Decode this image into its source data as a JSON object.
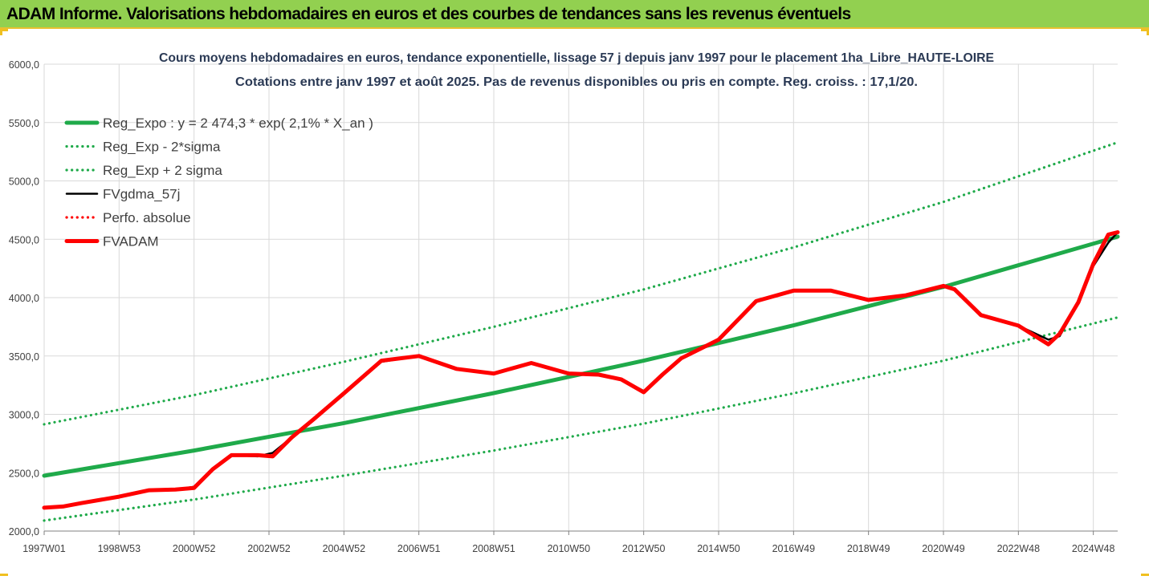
{
  "header": {
    "title": "ADAM Informe. Valorisations hebdomadaires en euros et des courbes de tendances sans les revenus éventuels"
  },
  "colors": {
    "header_bg": "#92d050",
    "trend_green": "#1faa4a",
    "fv_red": "#ff0000",
    "fv_black": "#000000",
    "grid": "#d9d9d9"
  },
  "chart_data": {
    "type": "line",
    "title": "Cours moyens hebdomadaires en euros, tendance exponentielle, lissage 57 j depuis janv 1997 pour le placement 1ha_Libre_HAUTE-LOIRE",
    "subtitle": "Cotations entre janv 1997 et août 2025. Pas de revenus disponibles ou pris en compte. Reg. croiss. : 17,1/20.",
    "xlabel": "",
    "ylabel": "",
    "ylim": [
      2000,
      6000
    ],
    "xlim": [
      1997.0,
      2025.65
    ],
    "yticks": [
      "2000,0",
      "2500,0",
      "3000,0",
      "3500,0",
      "4000,0",
      "4500,0",
      "5000,0",
      "5500,0",
      "6000,0"
    ],
    "xticks": [
      {
        "label": "1997W01",
        "x": 1997.0
      },
      {
        "label": "1998W53",
        "x": 1999.0
      },
      {
        "label": "2000W52",
        "x": 2001.0
      },
      {
        "label": "2002W52",
        "x": 2003.0
      },
      {
        "label": "2004W52",
        "x": 2005.0
      },
      {
        "label": "2006W51",
        "x": 2007.0
      },
      {
        "label": "2008W51",
        "x": 2009.0
      },
      {
        "label": "2010W50",
        "x": 2011.0
      },
      {
        "label": "2012W50",
        "x": 2013.0
      },
      {
        "label": "2014W50",
        "x": 2015.0
      },
      {
        "label": "2016W49",
        "x": 2017.0
      },
      {
        "label": "2018W49",
        "x": 2019.0
      },
      {
        "label": "2020W49",
        "x": 2021.0
      },
      {
        "label": "2022W48",
        "x": 2023.0
      },
      {
        "label": "2024W48",
        "x": 2025.0
      }
    ],
    "grid": true,
    "legend_position": "top-left",
    "series": [
      {
        "name": "Reg_Expo : y = 2 474,3 * exp( 2,1% *  X_an )",
        "style": "solid-thick",
        "color": "#1faa4a",
        "points": [
          [
            1997.0,
            2474
          ],
          [
            2001.0,
            2690
          ],
          [
            2005.0,
            2925
          ],
          [
            2009.0,
            3182
          ],
          [
            2013.0,
            3460
          ],
          [
            2017.0,
            3762
          ],
          [
            2021.0,
            4092
          ],
          [
            2025.65,
            4522
          ]
        ]
      },
      {
        "name": "Reg_Exp - 2*sigma",
        "style": "dotted",
        "color": "#1faa4a",
        "points": [
          [
            1997.0,
            2090
          ],
          [
            2001.0,
            2270
          ],
          [
            2005.0,
            2475
          ],
          [
            2009.0,
            2690
          ],
          [
            2013.0,
            2920
          ],
          [
            2017.0,
            3180
          ],
          [
            2021.0,
            3460
          ],
          [
            2025.65,
            3830
          ]
        ]
      },
      {
        "name": "Reg_Exp + 2 sigma",
        "style": "dotted",
        "color": "#1faa4a",
        "points": [
          [
            1997.0,
            2915
          ],
          [
            2001.0,
            3165
          ],
          [
            2005.0,
            3450
          ],
          [
            2009.0,
            3750
          ],
          [
            2013.0,
            4070
          ],
          [
            2017.0,
            4430
          ],
          [
            2021.0,
            4820
          ],
          [
            2025.65,
            5330
          ]
        ]
      },
      {
        "name": "FVgdma_57j",
        "style": "solid",
        "color": "#000000",
        "points": [
          [
            1997.0,
            2200
          ],
          [
            1997.5,
            2210
          ],
          [
            1998.0,
            2240
          ],
          [
            1999.0,
            2295
          ],
          [
            1999.8,
            2350
          ],
          [
            2000.5,
            2355
          ],
          [
            2001.0,
            2380
          ],
          [
            2001.5,
            2530
          ],
          [
            2002.0,
            2650
          ],
          [
            2002.7,
            2640
          ],
          [
            2003.1,
            2670
          ],
          [
            2003.6,
            2800
          ],
          [
            2004.2,
            2960
          ],
          [
            2005.0,
            3180
          ],
          [
            2006.0,
            3450
          ],
          [
            2007.0,
            3500
          ],
          [
            2008.0,
            3390
          ],
          [
            2009.0,
            3350
          ],
          [
            2010.0,
            3440
          ],
          [
            2011.0,
            3350
          ],
          [
            2011.8,
            3340
          ],
          [
            2012.4,
            3300
          ],
          [
            2013.0,
            3200
          ],
          [
            2013.5,
            3340
          ],
          [
            2014.0,
            3480
          ],
          [
            2015.0,
            3640
          ],
          [
            2016.0,
            3970
          ],
          [
            2017.0,
            4060
          ],
          [
            2018.0,
            4060
          ],
          [
            2019.0,
            3980
          ],
          [
            2020.0,
            4020
          ],
          [
            2021.0,
            4090
          ],
          [
            2021.3,
            4080
          ],
          [
            2022.0,
            3850
          ],
          [
            2023.0,
            3760
          ],
          [
            2023.8,
            3640
          ],
          [
            2024.1,
            3670
          ],
          [
            2024.6,
            3950
          ],
          [
            2025.0,
            4270
          ],
          [
            2025.4,
            4470
          ],
          [
            2025.65,
            4560
          ]
        ]
      },
      {
        "name": "Perfo. absolue",
        "style": "dotted",
        "color": "#ff0000",
        "points": []
      },
      {
        "name": "FVADAM",
        "style": "solid-thick",
        "color": "#ff0000",
        "points": [
          [
            1997.0,
            2200
          ],
          [
            1997.5,
            2210
          ],
          [
            1998.0,
            2240
          ],
          [
            1999.0,
            2295
          ],
          [
            1999.8,
            2350
          ],
          [
            2000.5,
            2355
          ],
          [
            2001.0,
            2370
          ],
          [
            2001.5,
            2530
          ],
          [
            2002.0,
            2650
          ],
          [
            2002.7,
            2650
          ],
          [
            2003.1,
            2640
          ],
          [
            2003.6,
            2800
          ],
          [
            2004.2,
            2960
          ],
          [
            2005.0,
            3180
          ],
          [
            2006.0,
            3460
          ],
          [
            2007.0,
            3500
          ],
          [
            2008.0,
            3390
          ],
          [
            2009.0,
            3350
          ],
          [
            2010.0,
            3440
          ],
          [
            2011.0,
            3350
          ],
          [
            2011.8,
            3340
          ],
          [
            2012.4,
            3300
          ],
          [
            2013.0,
            3190
          ],
          [
            2013.5,
            3340
          ],
          [
            2014.0,
            3480
          ],
          [
            2015.0,
            3640
          ],
          [
            2016.0,
            3970
          ],
          [
            2017.0,
            4060
          ],
          [
            2018.0,
            4060
          ],
          [
            2019.0,
            3980
          ],
          [
            2020.0,
            4020
          ],
          [
            2021.0,
            4100
          ],
          [
            2021.3,
            4070
          ],
          [
            2022.0,
            3850
          ],
          [
            2023.0,
            3760
          ],
          [
            2023.8,
            3600
          ],
          [
            2024.1,
            3690
          ],
          [
            2024.6,
            3960
          ],
          [
            2025.0,
            4290
          ],
          [
            2025.4,
            4540
          ],
          [
            2025.65,
            4560
          ]
        ]
      }
    ]
  }
}
